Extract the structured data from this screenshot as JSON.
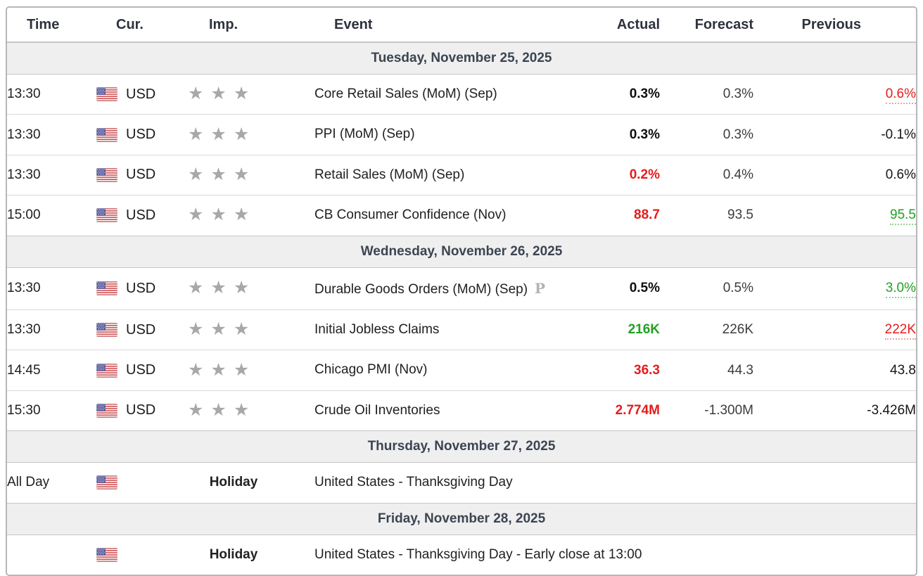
{
  "table": {
    "columns": [
      {
        "label": "Time"
      },
      {
        "label": "Cur."
      },
      {
        "label": "Imp."
      },
      {
        "label": "Event"
      },
      {
        "label": "Actual"
      },
      {
        "label": "Forecast"
      },
      {
        "label": "Previous"
      }
    ]
  },
  "colors": {
    "negative": "#e51c1c",
    "positive": "#23a123",
    "date_header_text": "#3b4552",
    "date_header_bg": "#efefef",
    "star": "#a8a8a8"
  },
  "sections": [
    {
      "date": "Tuesday, November 25, 2025",
      "rows": [
        {
          "type": "event",
          "time": "13:30",
          "currency": "USD",
          "flag": "us-flag-icon",
          "importance": 3,
          "event": "Core Retail Sales (MoM) (Sep)",
          "preliminary": false,
          "actual": {
            "text": "0.3%",
            "style": "v-black"
          },
          "forecast": "0.3%",
          "previous": {
            "text": "0.6%",
            "style": "p-red-dotted"
          }
        },
        {
          "type": "event",
          "time": "13:30",
          "currency": "USD",
          "flag": "us-flag-icon",
          "importance": 3,
          "event": "PPI (MoM) (Sep)",
          "preliminary": false,
          "actual": {
            "text": "0.3%",
            "style": "v-black"
          },
          "forecast": "0.3%",
          "previous": {
            "text": "-0.1%",
            "style": "p-plain"
          }
        },
        {
          "type": "event",
          "time": "13:30",
          "currency": "USD",
          "flag": "us-flag-icon",
          "importance": 3,
          "event": "Retail Sales (MoM) (Sep)",
          "preliminary": false,
          "actual": {
            "text": "0.2%",
            "style": "v-red"
          },
          "forecast": "0.4%",
          "previous": {
            "text": "0.6%",
            "style": "p-plain"
          }
        },
        {
          "type": "event",
          "time": "15:00",
          "currency": "USD",
          "flag": "us-flag-icon",
          "importance": 3,
          "event": "CB Consumer Confidence (Nov)",
          "preliminary": false,
          "actual": {
            "text": "88.7",
            "style": "v-red"
          },
          "forecast": "93.5",
          "previous": {
            "text": "95.5",
            "style": "p-green-dotted"
          }
        }
      ]
    },
    {
      "date": "Wednesday, November 26, 2025",
      "rows": [
        {
          "type": "event",
          "time": "13:30",
          "currency": "USD",
          "flag": "us-flag-icon",
          "importance": 3,
          "event": "Durable Goods Orders (MoM) (Sep)",
          "preliminary": true,
          "preliminary_mark": "P",
          "actual": {
            "text": "0.5%",
            "style": "v-black"
          },
          "forecast": "0.5%",
          "previous": {
            "text": "3.0%",
            "style": "p-green-dotted"
          }
        },
        {
          "type": "event",
          "time": "13:30",
          "currency": "USD",
          "flag": "us-flag-icon",
          "importance": 3,
          "event": "Initial Jobless Claims",
          "preliminary": false,
          "actual": {
            "text": "216K",
            "style": "v-green"
          },
          "forecast": "226K",
          "previous": {
            "text": "222K",
            "style": "p-red-dotted"
          }
        },
        {
          "type": "event",
          "time": "14:45",
          "currency": "USD",
          "flag": "us-flag-icon",
          "importance": 3,
          "event": "Chicago PMI (Nov)",
          "preliminary": false,
          "actual": {
            "text": "36.3",
            "style": "v-red"
          },
          "forecast": "44.3",
          "previous": {
            "text": "43.8",
            "style": "p-plain"
          }
        },
        {
          "type": "event",
          "time": "15:30",
          "currency": "USD",
          "flag": "us-flag-icon",
          "importance": 3,
          "event": "Crude Oil Inventories",
          "preliminary": false,
          "actual": {
            "text": "2.774M",
            "style": "v-red"
          },
          "forecast": "-1.300M",
          "previous": {
            "text": "-3.426M",
            "style": "p-plain"
          }
        }
      ]
    },
    {
      "date": "Thursday, November 27, 2025",
      "rows": [
        {
          "type": "holiday",
          "time": "All Day",
          "currency": "",
          "flag": "us-flag-icon",
          "importance_label": "Holiday",
          "event": "United States - Thanksgiving Day"
        }
      ]
    },
    {
      "date": "Friday, November 28, 2025",
      "rows": [
        {
          "type": "holiday",
          "time": "",
          "currency": "",
          "flag": "us-flag-icon",
          "importance_label": "Holiday",
          "event": "United States - Thanksgiving Day - Early close at 13:00"
        }
      ]
    }
  ]
}
